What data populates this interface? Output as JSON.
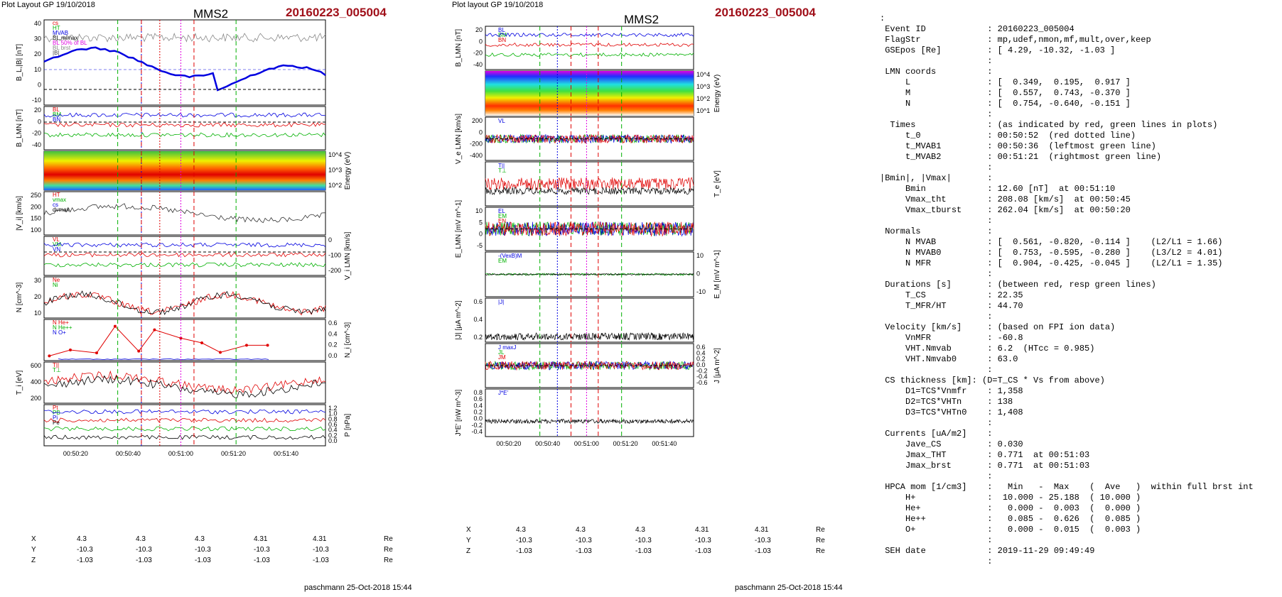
{
  "header": {
    "left_title": "Plot Layout GP 19/10/2018",
    "mid_title": "Plot layout GP 19/10/2018",
    "spacecraft": "MMS2",
    "event": "20160223_005004",
    "footer": "paschmann 25-Oct-2018 15:44"
  },
  "left_plot": {
    "panels": [
      {
        "ylabel": "B_L,|B| [nT]",
        "ticks": [
          "40",
          "30",
          "20",
          "10",
          "0",
          "-10"
        ],
        "legend": [
          "cs",
          "HT",
          "MVAB",
          "BL,mimax",
          "BL 50% of BL",
          "BL brst",
          "|B|"
        ]
      },
      {
        "ylabel": "B_LMN [nT]",
        "ticks": [
          "20",
          "0",
          "-20",
          "-40"
        ],
        "legend": [
          "BL",
          "BM",
          "BN"
        ]
      },
      {
        "ylabel": "Energy (eV)",
        "ticks": [
          "10^4",
          "10^3",
          "10^2"
        ],
        "legend": []
      },
      {
        "ylabel": "|V_i| [km/s]",
        "ticks": [
          "250",
          "200",
          "150",
          "100"
        ],
        "legend": [
          "HT",
          "vmax",
          "cs",
          "dvmax"
        ]
      },
      {
        "ylabel": "V_i LMN [km/s]",
        "ticks": [
          "0",
          "-100",
          "-200"
        ],
        "legend": [
          "VL",
          "VM",
          "VN"
        ]
      },
      {
        "ylabel": "N [cm^-3]",
        "ticks": [
          "30",
          "20",
          "10"
        ],
        "legend": [
          "Ne",
          "Ni"
        ]
      },
      {
        "ylabel": "N_i [cm^-3]",
        "ticks": [
          "0.6",
          "0.4",
          "0.2",
          "0.0"
        ],
        "legend": [
          "N He+",
          "N He++",
          "N O+"
        ]
      },
      {
        "ylabel": "T_i [eV]",
        "ticks": [
          "600",
          "400",
          "200"
        ],
        "legend": [
          "T||",
          "T⊥"
        ]
      },
      {
        "ylabel": "P [nPa]",
        "ticks": [
          "1.2",
          "1.0",
          "0.8",
          "0.6",
          "0.4",
          "0.2",
          "0.0"
        ],
        "legend": [
          "Pt",
          "PB",
          "Pi",
          "Pe"
        ]
      }
    ],
    "time_ticks": [
      "00:50:20",
      "00:50:40",
      "00:51:00",
      "00:51:20",
      "00:51:40"
    ],
    "pos_rows": [
      {
        "label": "X",
        "values": [
          "4.3",
          "4.3",
          "4.3",
          "4.31",
          "4.31"
        ],
        "unit": "Re"
      },
      {
        "label": "Y",
        "values": [
          "-10.3",
          "-10.3",
          "-10.3",
          "-10.3",
          "-10.3"
        ],
        "unit": "Re"
      },
      {
        "label": "Z",
        "values": [
          "-1.03",
          "-1.03",
          "-1.03",
          "-1.03",
          "-1.03"
        ],
        "unit": "Re"
      }
    ]
  },
  "mid_plot": {
    "panels": [
      {
        "ylabel": "B_LMN [nT]",
        "ticks": [
          "20",
          "0",
          "-20",
          "-40"
        ],
        "legend": [
          "BL",
          "BM",
          "BN"
        ]
      },
      {
        "ylabel": "Energy (eV)",
        "ticks": [
          "10^4",
          "10^3",
          "10^2",
          "10^1"
        ],
        "legend": []
      },
      {
        "ylabel": "V_e LMN [km/s]",
        "ticks": [
          "200",
          "0",
          "-200",
          "-400"
        ],
        "legend": [
          "VL"
        ]
      },
      {
        "ylabel": "T_e [eV]",
        "ticks": [
          "",
          "",
          ""
        ],
        "legend": [
          "T||",
          "T⊥"
        ]
      },
      {
        "ylabel": "E_LMN [mV m^-1]",
        "ticks": [
          "10",
          "5",
          "0",
          "-5"
        ],
        "legend": [
          "EL",
          "EM",
          "EN"
        ]
      },
      {
        "ylabel": "E_M [mV m^-1]",
        "ticks": [
          "10",
          "0",
          "-10"
        ],
        "legend": [
          "-(VexB)M",
          "EM"
        ]
      },
      {
        "ylabel": "|J| [μA m^-2]",
        "ticks": [
          "0.6",
          "0.4",
          "0.2"
        ],
        "legend": [
          "|J|"
        ]
      },
      {
        "ylabel": "J [μA m^-2]",
        "ticks": [
          "0.6",
          "0.4",
          "0.2",
          "0.0",
          "-0.2",
          "-0.4",
          "-0.6"
        ],
        "legend": [
          "J maxJ",
          "JL",
          "JM"
        ]
      },
      {
        "ylabel": "J*E' [nW m^-3]",
        "ticks": [
          "0.8",
          "0.6",
          "0.4",
          "0.2",
          "0.0",
          "-0.2",
          "-0.4"
        ],
        "legend": [
          "J*E'"
        ]
      }
    ],
    "time_ticks": [
      "00:50:20",
      "00:50:40",
      "00:51:00",
      "00:51:20",
      "00:51:40"
    ],
    "pos_rows": [
      {
        "label": "X",
        "values": [
          "4.3",
          "4.3",
          "4.3",
          "4.31",
          "4.31"
        ],
        "unit": "Re"
      },
      {
        "label": "Y",
        "values": [
          "-10.3",
          "-10.3",
          "-10.3",
          "-10.3",
          "-10.3"
        ],
        "unit": "Re"
      },
      {
        "label": "Z",
        "values": [
          "-1.03",
          "-1.03",
          "-1.03",
          "-1.03",
          "-1.03"
        ],
        "unit": "Re"
      }
    ]
  },
  "chart_data": {
    "type": "line",
    "title": "MMS2 20160223_005004",
    "x_range": [
      "00:50:08",
      "00:51:55"
    ],
    "vertical_markers": {
      "red_dashed": [
        "00:50:45",
        "00:51:05"
      ],
      "green_dashed": [
        "00:50:36",
        "00:51:21"
      ],
      "red_dotted": [
        "00:50:52"
      ],
      "magenta_dotted": [
        "00:51:00"
      ],
      "blue_dotted": [
        "00:50:45"
      ]
    },
    "series": [
      {
        "name": "N He++",
        "x": [
          "00:50:10",
          "00:50:18",
          "00:50:28",
          "00:50:35",
          "00:50:44",
          "00:50:50",
          "00:51:00",
          "00:51:08",
          "00:51:15",
          "00:51:25",
          "00:51:33"
        ],
        "values": [
          0.08,
          0.18,
          0.13,
          0.58,
          0.16,
          0.52,
          0.38,
          0.3,
          0.14,
          0.26,
          0.26
        ]
      }
    ]
  },
  "info": {
    "colon_top": ":",
    "lines": [
      " Event ID            : 20160223_005004",
      " FlagStr             : mp,udef,nmon,mf,mult,over,keep",
      " GSEpos [Re]         : [ 4.29, -10.32, -1.03 ]",
      "                     :",
      " LMN coords          :",
      "     L               : [  0.349,  0.195,  0.917 ]",
      "     M               : [  0.557,  0.743, -0.370 ]",
      "     N               : [  0.754, -0.640, -0.151 ]",
      "                     :",
      "  Times              : (as indicated by red, green lines in plots)",
      "     t_0             : 00:50:52  (red dotted line)",
      "     t_MVAB1         : 00:50:36  (leftmost green line)",
      "     t_MVAB2         : 00:51:21  (rightmost green line)",
      "                     :",
      "|Bmin|, |Vmax|       :",
      "     Bmin            : 12.60 [nT]  at 00:51:10",
      "     Vmax_tht        : 208.08 [km/s]  at 00:50:45",
      "     Vmax_tburst     : 262.04 [km/s]  at 00:50:20",
      "                     :",
      " Normals             :",
      "     N MVAB          : [  0.561, -0.820, -0.114 ]    (L2/L1 = 1.66)",
      "     N MVAB0         : [  0.753, -0.595, -0.280 ]    (L3/L2 = 4.01)",
      "     N MFR           : [  0.904, -0.425, -0.045 ]    (L2/L1 = 1.35)",
      "                     :",
      " Durations [s]       : (between red, resp green lines)",
      "     T_CS            : 22.35",
      "     T_MFR/HT        : 44.70",
      "                     :",
      " Velocity [km/s]     : (based on FPI ion data)",
      "     VnMFR           : -60.8",
      "     VHT.Nmvab       : 6.2  (HTcc = 0.985)",
      "     VHT.Nmvab0      : 63.0",
      "                     :",
      " CS thickness [km]: (D=T_CS * Vs from above)",
      "     D1=TCS*Vnmfr    : 1,358",
      "     D2=TCS*VHTn     : 138",
      "     D3=TCS*VHTn0    : 1,408",
      "                     :",
      " Currents [uA/m2]    :",
      "     Jave_CS         : 0.030",
      "     Jmax_THT        : 0.771  at 00:51:03",
      "     Jmax_brst       : 0.771  at 00:51:03",
      "                     :",
      " HPCA mom [1/cm3]    :   Min   -  Max    (  Ave   )  within full brst int",
      "     H+              :  10.000 - 25.188  ( 10.000 )",
      "     He+             :   0.000 -  0.003  (  0.000 )",
      "     He++            :   0.085 -  0.626  (  0.085 )",
      "     O+              :   0.000 -  0.015  (  0.003 )",
      "                     :",
      " SEH date            : 2019-11-29 09:49:49",
      "                     :"
    ]
  },
  "colors": {
    "red": "#e00000",
    "green": "#00b000",
    "blue": "#0000e0",
    "magenta": "#e000e0",
    "black": "#000000",
    "title_red": "#a0101a"
  }
}
